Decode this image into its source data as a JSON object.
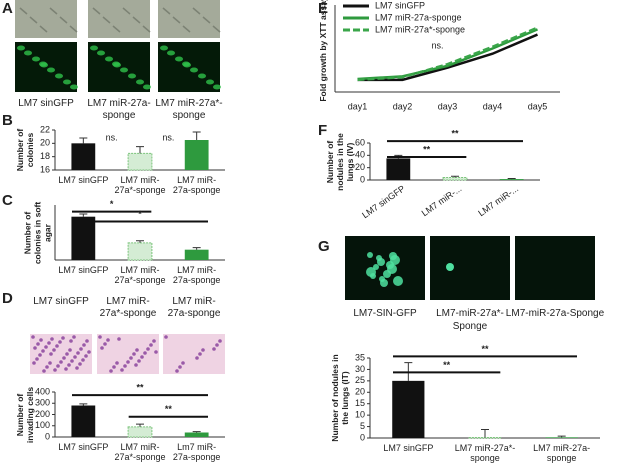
{
  "panel_labels": [
    "A",
    "B",
    "C",
    "D",
    "E",
    "F",
    "G"
  ],
  "image_captions_A": [
    "LM7 sinGFP",
    "LM7 miR-27a-sponge",
    "LM7 miR-27a*-sponge"
  ],
  "image_captions_D": [
    "LM7 sinGFP",
    "LM7 miR-27a*-sponge",
    "LM7 miR-27a-sponge"
  ],
  "image_captions_G": [
    "LM7-SIN-GFP",
    "LM7-miR-27a*-Sponge",
    "LM7-miR-27a-Sponge"
  ],
  "chart_data": [
    {
      "type": "bar",
      "y_label": "Number of colonies",
      "categories": [
        "LM7 sinGFP",
        "LM7 miR-27a*-sponge",
        "LM7 miR-27a-sponge"
      ],
      "values": [
        20,
        18.5,
        20.5
      ],
      "errors": [
        0.8,
        1,
        1.2
      ],
      "colors": [
        "#111111",
        "#d4ecd4",
        "#2e9a3e"
      ],
      "ylim": [
        16,
        22
      ],
      "yticks": [
        16,
        18,
        20,
        22
      ],
      "significance": [
        "ns.",
        "ns."
      ]
    },
    {
      "type": "bar",
      "y_label": "Number of colonies in soft agar",
      "categories": [
        "LM7 sinGFP",
        "LM7 miR-27a*-sponge",
        "LM7 miR-27a-sponge"
      ],
      "values": [
        6.3,
        2.5,
        1.5
      ],
      "errors": [
        0.4,
        0.3,
        0.3
      ],
      "colors": [
        "#111111",
        "#d4ecd4",
        "#2e9a3e"
      ],
      "ylim": [
        0,
        8
      ],
      "significance": [
        "*",
        "*"
      ]
    },
    {
      "type": "bar",
      "y_label": "Number of invading cells",
      "categories": [
        "LM7 sinGFP",
        "LM7 miR-27a*-sponge",
        "Lm7 miR-27a-sponge"
      ],
      "values": [
        280,
        90,
        40
      ],
      "errors": [
        15,
        25,
        8
      ],
      "colors": [
        "#111111",
        "#d4ecd4",
        "#2e9a3e"
      ],
      "ylim": [
        0,
        400
      ],
      "yticks": [
        0,
        100,
        200,
        300,
        400
      ],
      "significance": [
        "**",
        "**"
      ]
    },
    {
      "type": "line",
      "y_label": "Fold growth by XTT assay",
      "categories": [
        "day1",
        "day2",
        "day3",
        "day4",
        "day5"
      ],
      "series": [
        {
          "name": "LM7 sinGFP",
          "color": "#111111",
          "style": "solid",
          "values": [
            1.7,
            1.7,
            2.4,
            3.2,
            4.3
          ]
        },
        {
          "name": "LM7 miR-27a-sponge",
          "color": "#2e9a3e",
          "style": "solid",
          "values": [
            1.75,
            1.9,
            2.5,
            3.5,
            4.6
          ]
        },
        {
          "name": "LM7 miR-27a*-sponge",
          "color": "#3aa64a",
          "style": "dashed",
          "values": [
            1.7,
            1.85,
            2.6,
            3.6,
            4.7
          ]
        }
      ],
      "ylim": [
        1,
        6
      ],
      "significance": [
        "ns."
      ]
    },
    {
      "type": "bar",
      "y_label": "Number of nodules in the lungs (IV)",
      "categories": [
        "LM7 sinGFP",
        "LM7 miR-...",
        "LM7 miR-..."
      ],
      "values": [
        35,
        4,
        1.5
      ],
      "errors": [
        5,
        2,
        1
      ],
      "colors": [
        "#111111",
        "#d4ecd4",
        "#2e9a3e"
      ],
      "ylim": [
        0,
        60
      ],
      "yticks": [
        0,
        20,
        40,
        60
      ],
      "significance": [
        "**",
        "**"
      ]
    },
    {
      "type": "bar",
      "y_label": "Number of nodules in the lungs (IT)",
      "categories": [
        "LM7 sinGFP",
        "LM7 miR-27a*-sponge",
        "LM7 miR-27a-sponge"
      ],
      "values": [
        25,
        0.2,
        0.3
      ],
      "errors": [
        8,
        3.5,
        0.5
      ],
      "colors": [
        "#111111",
        "#d4ecd4",
        "#2e9a3e"
      ],
      "ylim": [
        0,
        35
      ],
      "yticks": [
        0,
        5,
        10,
        15,
        20,
        25,
        30,
        35
      ],
      "significance": [
        "**",
        "**"
      ]
    }
  ]
}
